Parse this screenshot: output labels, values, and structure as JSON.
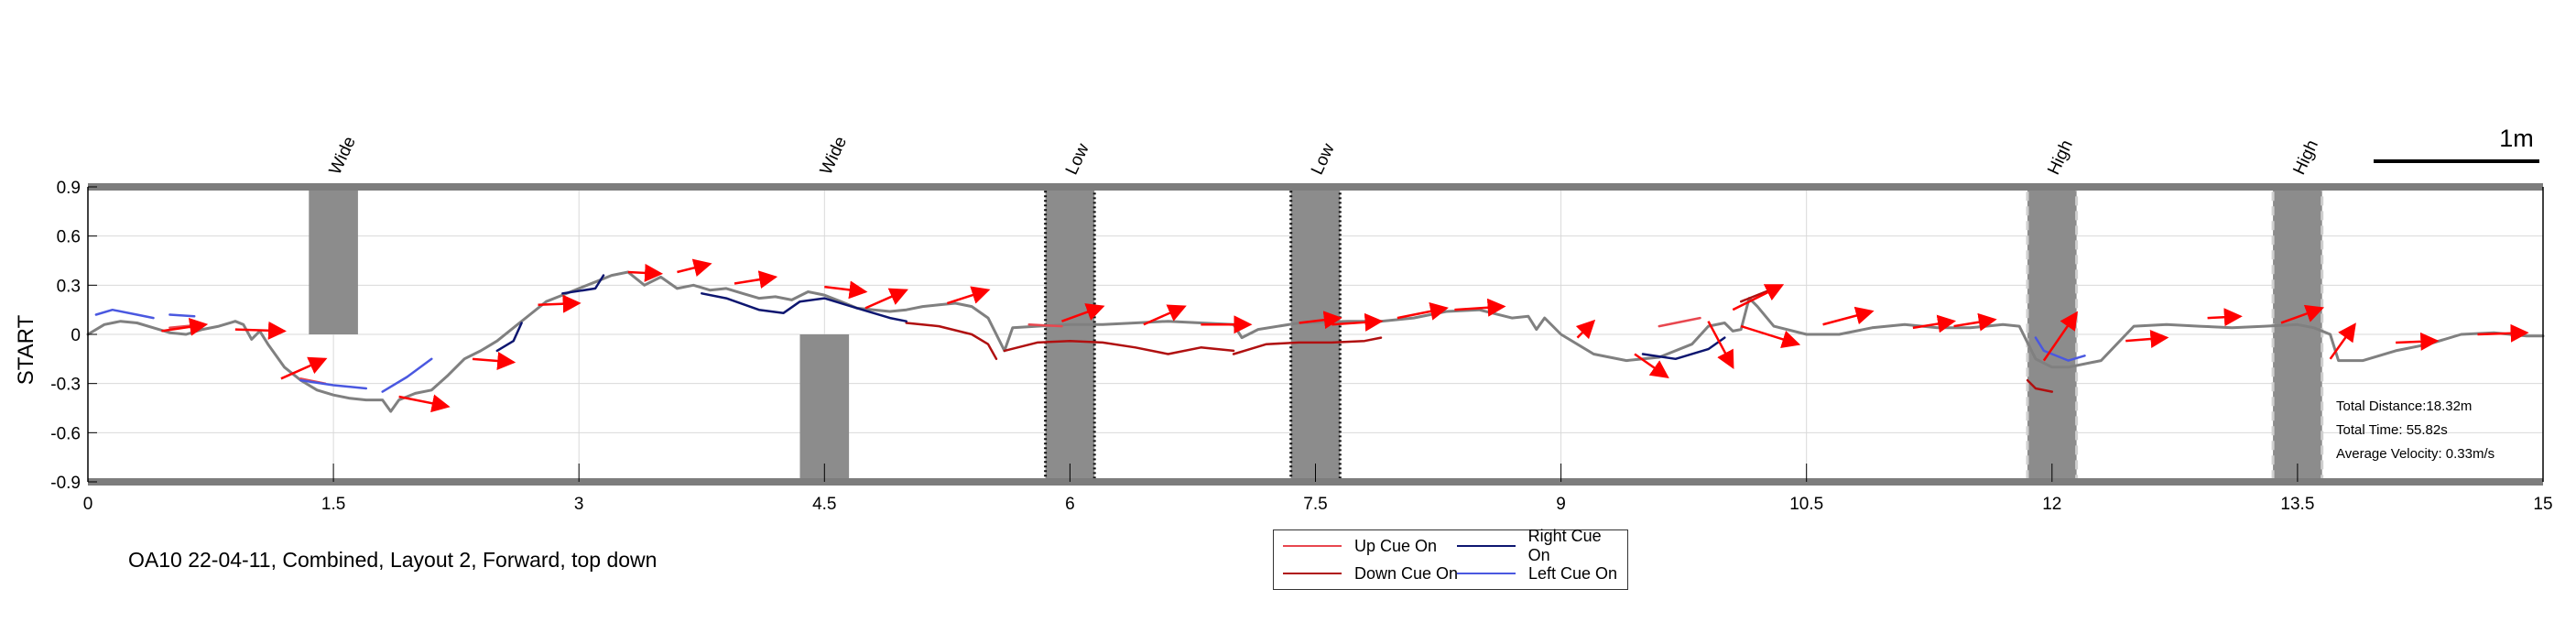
{
  "chart_data": {
    "type": "line",
    "title": "",
    "xlabel": "",
    "ylabel": "START",
    "xlim": [
      0,
      15
    ],
    "ylim": [
      -0.9,
      0.9
    ],
    "xticks": [
      0,
      1.5,
      3,
      4.5,
      6,
      7.5,
      9,
      10.5,
      12,
      13.5,
      15
    ],
    "xtick_labels": [
      "0",
      "1.5",
      "3",
      "4.5",
      "6",
      "7.5",
      "9",
      "10.5",
      "12",
      "13.5",
      "15"
    ],
    "yticks": [
      -0.9,
      -0.6,
      -0.3,
      0,
      0.3,
      0.6,
      0.9
    ],
    "ytick_labels": [
      "-0.9",
      "-0.6",
      "-0.3",
      "0",
      "0.3",
      "0.6",
      "0.9"
    ],
    "grid": true,
    "obstacles": [
      {
        "label": "Wide",
        "x0": 1.35,
        "x1": 1.65,
        "y0": 0,
        "y1": 0.9,
        "style": "solid"
      },
      {
        "label": "Wide",
        "x0": 4.35,
        "x1": 4.65,
        "y0": -0.9,
        "y1": 0,
        "style": "solid"
      },
      {
        "label": "Low",
        "x0": 5.85,
        "x1": 6.15,
        "y0": -0.9,
        "y1": 0.9,
        "style": "dotted"
      },
      {
        "label": "Low",
        "x0": 7.35,
        "x1": 7.65,
        "y0": -0.9,
        "y1": 0.9,
        "style": "dotted"
      },
      {
        "label": "High",
        "x0": 11.85,
        "x1": 12.15,
        "y0": -0.9,
        "y1": 0.9,
        "style": "dashed"
      },
      {
        "label": "High",
        "x0": 13.35,
        "x1": 13.65,
        "y0": -0.9,
        "y1": 0.9,
        "style": "dashed"
      }
    ],
    "series": [
      {
        "key": "path",
        "color": "#808080",
        "segments": [
          [
            [
              0,
              0
            ],
            [
              0.1,
              0.06
            ],
            [
              0.2,
              0.08
            ],
            [
              0.3,
              0.07
            ],
            [
              0.4,
              0.04
            ],
            [
              0.5,
              0.01
            ],
            [
              0.6,
              0.0
            ],
            [
              0.7,
              0.03
            ],
            [
              0.8,
              0.05
            ],
            [
              0.9,
              0.08
            ],
            [
              0.95,
              0.06
            ],
            [
              1.0,
              -0.03
            ],
            [
              1.05,
              0.02
            ],
            [
              1.1,
              -0.06
            ],
            [
              1.2,
              -0.2
            ],
            [
              1.3,
              -0.28
            ],
            [
              1.4,
              -0.34
            ],
            [
              1.5,
              -0.37
            ],
            [
              1.6,
              -0.39
            ],
            [
              1.7,
              -0.4
            ],
            [
              1.8,
              -0.4
            ],
            [
              1.85,
              -0.47
            ],
            [
              1.9,
              -0.4
            ],
            [
              2.0,
              -0.36
            ],
            [
              2.1,
              -0.34
            ],
            [
              2.2,
              -0.25
            ],
            [
              2.3,
              -0.15
            ],
            [
              2.4,
              -0.1
            ],
            [
              2.5,
              -0.04
            ],
            [
              2.6,
              0.04
            ],
            [
              2.7,
              0.12
            ],
            [
              2.8,
              0.2
            ],
            [
              2.9,
              0.24
            ],
            [
              3.0,
              0.28
            ],
            [
              3.1,
              0.32
            ],
            [
              3.2,
              0.36
            ],
            [
              3.3,
              0.38
            ],
            [
              3.4,
              0.3
            ],
            [
              3.5,
              0.35
            ],
            [
              3.6,
              0.28
            ],
            [
              3.7,
              0.3
            ],
            [
              3.8,
              0.27
            ],
            [
              3.9,
              0.28
            ],
            [
              4.0,
              0.25
            ],
            [
              4.1,
              0.22
            ],
            [
              4.2,
              0.23
            ],
            [
              4.3,
              0.21
            ],
            [
              4.4,
              0.26
            ],
            [
              4.5,
              0.24
            ],
            [
              4.6,
              0.2
            ],
            [
              4.7,
              0.16
            ],
            [
              4.8,
              0.15
            ],
            [
              4.9,
              0.14
            ],
            [
              5.0,
              0.15
            ],
            [
              5.1,
              0.17
            ],
            [
              5.2,
              0.18
            ],
            [
              5.3,
              0.19
            ],
            [
              5.4,
              0.17
            ],
            [
              5.5,
              0.1
            ],
            [
              5.6,
              -0.1
            ],
            [
              5.65,
              0.04
            ],
            [
              5.8,
              0.05
            ],
            [
              6.0,
              0.06
            ],
            [
              6.2,
              0.06
            ],
            [
              6.4,
              0.07
            ],
            [
              6.6,
              0.08
            ],
            [
              6.8,
              0.07
            ],
            [
              7.0,
              0.06
            ],
            [
              7.05,
              -0.02
            ],
            [
              7.15,
              0.03
            ],
            [
              7.4,
              0.07
            ],
            [
              7.7,
              0.08
            ],
            [
              7.9,
              0.08
            ],
            [
              8.1,
              0.1
            ],
            [
              8.3,
              0.14
            ],
            [
              8.5,
              0.15
            ],
            [
              8.7,
              0.1
            ],
            [
              8.8,
              0.11
            ],
            [
              8.85,
              0.03
            ],
            [
              8.9,
              0.1
            ],
            [
              9.0,
              0.0
            ],
            [
              9.2,
              -0.12
            ],
            [
              9.4,
              -0.16
            ],
            [
              9.6,
              -0.14
            ],
            [
              9.8,
              -0.06
            ],
            [
              9.9,
              0.05
            ],
            [
              10.0,
              0.07
            ],
            [
              10.05,
              0.02
            ],
            [
              10.1,
              0.03
            ],
            [
              10.15,
              0.22
            ],
            [
              10.2,
              0.17
            ],
            [
              10.3,
              0.05
            ],
            [
              10.5,
              0.0
            ],
            [
              10.7,
              0.0
            ],
            [
              10.9,
              0.04
            ],
            [
              11.1,
              0.06
            ],
            [
              11.3,
              0.04
            ],
            [
              11.5,
              0.04
            ],
            [
              11.7,
              0.06
            ],
            [
              11.8,
              0.05
            ],
            [
              11.9,
              -0.15
            ],
            [
              12.0,
              -0.2
            ],
            [
              12.1,
              -0.2
            ],
            [
              12.3,
              -0.16
            ],
            [
              12.5,
              0.05
            ],
            [
              12.7,
              0.06
            ],
            [
              12.9,
              0.05
            ],
            [
              13.1,
              0.04
            ],
            [
              13.3,
              0.05
            ],
            [
              13.5,
              0.06
            ],
            [
              13.6,
              0.04
            ],
            [
              13.7,
              0.0
            ],
            [
              13.75,
              -0.16
            ],
            [
              13.9,
              -0.16
            ],
            [
              14.1,
              -0.1
            ],
            [
              14.3,
              -0.06
            ],
            [
              14.5,
              0.0
            ],
            [
              14.7,
              0.01
            ],
            [
              14.9,
              -0.01
            ],
            [
              15.0,
              -0.01
            ]
          ]
        ]
      },
      {
        "key": "up",
        "name": "Up Cue On",
        "color": "#e8474f",
        "segments": [
          [
            [
              0.5,
              0.04
            ],
            [
              0.7,
              0.06
            ]
          ],
          [
            [
              1.3,
              -0.27
            ],
            [
              1.45,
              -0.3
            ]
          ],
          [
            [
              5.75,
              0.06
            ],
            [
              5.95,
              0.05
            ]
          ],
          [
            [
              9.6,
              0.05
            ],
            [
              9.85,
              0.1
            ]
          ]
        ]
      },
      {
        "key": "down",
        "name": "Down Cue On",
        "color": "#b01010",
        "segments": [
          [
            [
              5.0,
              0.07
            ],
            [
              5.2,
              0.05
            ],
            [
              5.4,
              0.0
            ],
            [
              5.5,
              -0.06
            ],
            [
              5.55,
              -0.15
            ]
          ],
          [
            [
              5.6,
              -0.1
            ],
            [
              5.8,
              -0.05
            ],
            [
              6.0,
              -0.04
            ],
            [
              6.2,
              -0.05
            ],
            [
              6.4,
              -0.08
            ],
            [
              6.6,
              -0.12
            ],
            [
              6.8,
              -0.08
            ],
            [
              7.0,
              -0.1
            ]
          ],
          [
            [
              7.0,
              -0.12
            ],
            [
              7.2,
              -0.06
            ],
            [
              7.4,
              -0.05
            ],
            [
              7.6,
              -0.05
            ],
            [
              7.8,
              -0.04
            ],
            [
              7.9,
              -0.02
            ]
          ],
          [
            [
              11.85,
              -0.28
            ],
            [
              11.9,
              -0.33
            ],
            [
              12.0,
              -0.35
            ]
          ],
          [
            [
              10.1,
              0.2
            ],
            [
              10.3,
              0.28
            ]
          ]
        ]
      },
      {
        "key": "right",
        "name": "Right Cue On",
        "color": "#0d1670",
        "segments": [
          [
            [
              2.5,
              -0.1
            ],
            [
              2.6,
              -0.04
            ],
            [
              2.65,
              0.07
            ]
          ],
          [
            [
              2.9,
              0.25
            ],
            [
              3.1,
              0.28
            ],
            [
              3.15,
              0.36
            ]
          ],
          [
            [
              3.75,
              0.25
            ],
            [
              3.9,
              0.22
            ],
            [
              4.1,
              0.15
            ],
            [
              4.25,
              0.13
            ],
            [
              4.35,
              0.2
            ],
            [
              4.5,
              0.22
            ],
            [
              4.7,
              0.16
            ],
            [
              4.9,
              0.1
            ],
            [
              5.0,
              0.08
            ]
          ],
          [
            [
              9.5,
              -0.12
            ],
            [
              9.7,
              -0.15
            ],
            [
              9.9,
              -0.09
            ],
            [
              10.0,
              -0.02
            ]
          ]
        ]
      },
      {
        "key": "left",
        "name": "Left Cue On",
        "color": "#4a58e0",
        "segments": [
          [
            [
              0.05,
              0.12
            ],
            [
              0.15,
              0.15
            ],
            [
              0.3,
              0.12
            ],
            [
              0.4,
              0.1
            ]
          ],
          [
            [
              0.5,
              0.12
            ],
            [
              0.65,
              0.11
            ]
          ],
          [
            [
              1.3,
              -0.28
            ],
            [
              1.5,
              -0.31
            ],
            [
              1.7,
              -0.33
            ]
          ],
          [
            [
              1.8,
              -0.35
            ],
            [
              1.95,
              -0.26
            ],
            [
              2.1,
              -0.15
            ]
          ],
          [
            [
              11.9,
              -0.02
            ],
            [
              11.95,
              -0.1
            ],
            [
              12.1,
              -0.16
            ],
            [
              12.2,
              -0.13
            ]
          ]
        ]
      }
    ],
    "arrows": [
      [
        0.45,
        0.02,
        0.72,
        0.06
      ],
      [
        0.9,
        0.03,
        1.2,
        0.02
      ],
      [
        1.18,
        -0.27,
        1.45,
        -0.15
      ],
      [
        1.9,
        -0.38,
        2.2,
        -0.44
      ],
      [
        2.35,
        -0.15,
        2.6,
        -0.17
      ],
      [
        2.75,
        0.18,
        3.0,
        0.19
      ],
      [
        3.3,
        0.38,
        3.5,
        0.37
      ],
      [
        3.6,
        0.38,
        3.8,
        0.43
      ],
      [
        3.95,
        0.31,
        4.2,
        0.35
      ],
      [
        4.5,
        0.29,
        4.75,
        0.26
      ],
      [
        4.75,
        0.16,
        5.0,
        0.27
      ],
      [
        5.25,
        0.19,
        5.5,
        0.27
      ],
      [
        5.95,
        0.08,
        6.2,
        0.17
      ],
      [
        6.45,
        0.06,
        6.7,
        0.17
      ],
      [
        6.8,
        0.06,
        7.1,
        0.06
      ],
      [
        7.4,
        0.07,
        7.65,
        0.1
      ],
      [
        7.6,
        0.06,
        7.9,
        0.08
      ],
      [
        8.0,
        0.1,
        8.3,
        0.16
      ],
      [
        8.35,
        0.15,
        8.65,
        0.17
      ],
      [
        9.1,
        -0.02,
        9.2,
        0.08
      ],
      [
        9.45,
        -0.12,
        9.65,
        -0.26
      ],
      [
        9.9,
        0.08,
        10.05,
        -0.2
      ],
      [
        10.05,
        0.15,
        10.35,
        0.3
      ],
      [
        10.1,
        0.05,
        10.45,
        -0.06
      ],
      [
        10.6,
        0.06,
        10.9,
        0.14
      ],
      [
        11.15,
        0.04,
        11.4,
        0.08
      ],
      [
        11.4,
        0.05,
        11.65,
        0.09
      ],
      [
        11.95,
        -0.16,
        12.15,
        0.13
      ],
      [
        12.45,
        -0.04,
        12.7,
        -0.02
      ],
      [
        12.95,
        0.1,
        13.15,
        0.11
      ],
      [
        13.4,
        0.07,
        13.65,
        0.16
      ],
      [
        13.7,
        -0.15,
        13.85,
        0.06
      ],
      [
        14.1,
        -0.05,
        14.35,
        -0.04
      ],
      [
        14.6,
        0.0,
        14.9,
        0.01
      ]
    ],
    "arrow_color": "#ff0000",
    "legend_position": "bottom-center",
    "stats": {
      "distance": "Total Distance:18.32m",
      "time": "Total Time: 55.82s",
      "velocity": "Average Velocity: 0.33m/s"
    },
    "scale_bar_label": "1m"
  },
  "caption": "OA10 22-04-11, Combined, Layout 2, Forward, top down",
  "legend": {
    "up": "Up Cue On",
    "right": "Right Cue On",
    "down": "Down Cue On",
    "left": "Left Cue On"
  }
}
